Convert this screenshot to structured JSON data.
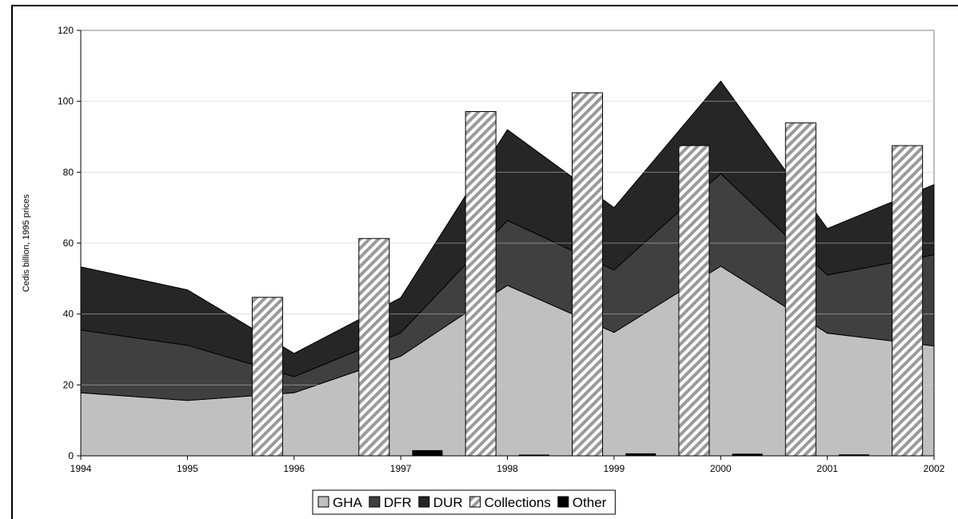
{
  "chart_data": {
    "type": "area",
    "title": "",
    "xlabel": "",
    "ylabel": "Cedis billion, 1995 prices",
    "x": [
      1994,
      1995,
      1996,
      1997,
      1998,
      1999,
      2000,
      2001,
      2002
    ],
    "x_tick_labels": [
      "1994",
      "1995",
      "1996",
      "1997",
      "1998",
      "1999",
      "2000",
      "2001",
      "2002"
    ],
    "ylim": [
      0,
      120
    ],
    "y_ticks": [
      0,
      20,
      40,
      60,
      80,
      100,
      120
    ],
    "y_tick_labels": [
      "0",
      "20",
      "40",
      "60",
      "80",
      "100",
      "120"
    ],
    "grid": "horizontal",
    "legend_position": "bottom",
    "stacked_area_series": [
      {
        "name": "GHA",
        "color": "#c0c0c0",
        "values": [
          17.8,
          15.6,
          17.8,
          28.1,
          48.1,
          34.8,
          53.5,
          34.6,
          31.0
        ]
      },
      {
        "name": "DFR",
        "color": "#404040",
        "values": [
          17.7,
          15.6,
          4.5,
          6.6,
          18.3,
          17.6,
          26.1,
          16.4,
          25.7
        ]
      },
      {
        "name": "DUR",
        "color": "#262626",
        "values": [
          17.8,
          15.6,
          6.6,
          9.9,
          25.6,
          17.6,
          26.1,
          13.1,
          19.8
        ]
      }
    ],
    "bar_series": [
      {
        "name": "Collections",
        "pattern": "diagonal-hatch",
        "color": "#a0a0a0",
        "x": [
          1995.75,
          1996.75,
          1997.75,
          1998.75,
          1999.75,
          2000.75,
          2001.75
        ],
        "values": [
          44.7,
          61.3,
          97.1,
          102.4,
          87.5,
          93.9,
          87.5
        ]
      },
      {
        "name": "Other",
        "color": "#000000",
        "x": [
          1997.25,
          1998.25,
          1999.25,
          2000.25,
          2001.25
        ],
        "values": [
          1.6,
          0.2,
          0.7,
          0.6,
          0.4
        ]
      }
    ],
    "legend": [
      "GHA",
      "DFR",
      "DUR",
      "Collections",
      "Other"
    ]
  }
}
